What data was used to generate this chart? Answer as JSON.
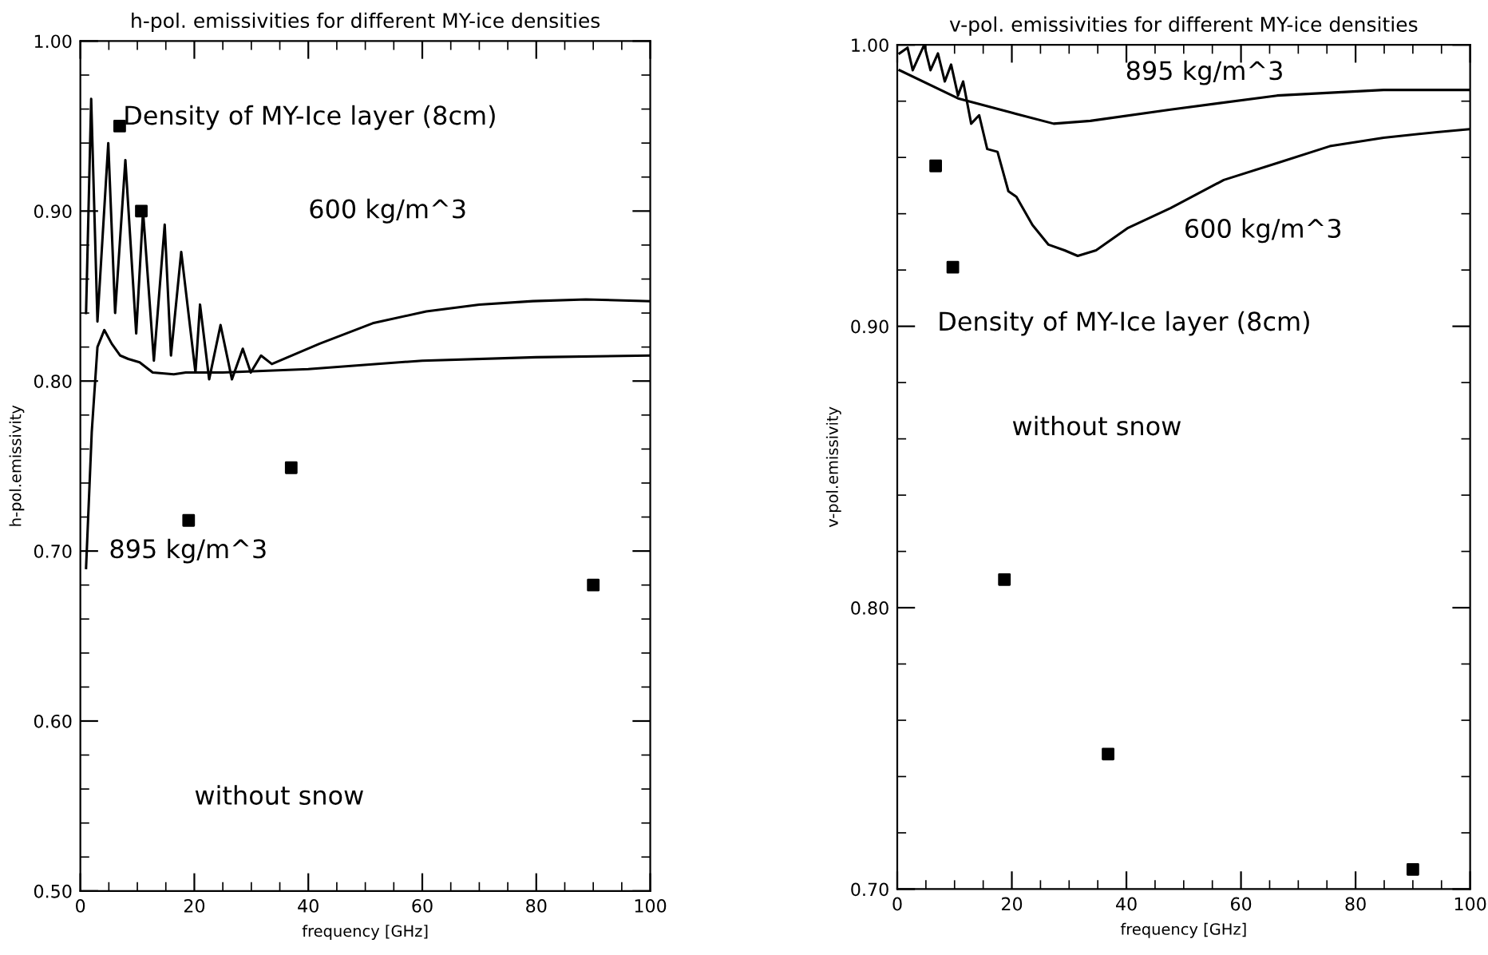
{
  "chart_data": [
    {
      "type": "line",
      "title": "h-pol. emissivities for different MY-ice densities",
      "xlabel": "frequency [GHz]",
      "ylabel": "h-pol.emissivity",
      "xlim": [
        0,
        100
      ],
      "xticks": [
        0,
        20,
        40,
        60,
        80,
        100
      ],
      "ylim": [
        0.5,
        1.0
      ],
      "yticks": [
        {
          "value": 0.5,
          "label": "0.50"
        },
        {
          "value": 0.6,
          "label": "0.60"
        },
        {
          "value": 0.7,
          "label": "0.70"
        },
        {
          "value": 0.8,
          "label": "0.80"
        },
        {
          "value": 0.9,
          "label": "0.90"
        },
        {
          "value": 1.0,
          "label": "1.00"
        }
      ],
      "grid": false,
      "legend": false,
      "series": [
        {
          "color": "#000000",
          "x": [
            1.0,
            1.9,
            3.0,
            4.9,
            6.1,
            7.9,
            9.8,
            11.0,
            12.9,
            14.8,
            15.9,
            17.7,
            20.2,
            21.0,
            22.6,
            24.6,
            26.6,
            28.5,
            29.9,
            31.7,
            33.6,
            42,
            51.3,
            60.7,
            70,
            79.4,
            88.7,
            100
          ],
          "values": [
            0.84,
            0.966,
            0.835,
            0.94,
            0.84,
            0.93,
            0.828,
            0.9,
            0.812,
            0.892,
            0.815,
            0.876,
            0.805,
            0.845,
            0.801,
            0.833,
            0.801,
            0.819,
            0.805,
            0.815,
            0.81,
            0.822,
            0.834,
            0.841,
            0.845,
            0.847,
            0.848,
            0.847
          ]
        },
        {
          "color": "#000000",
          "x": [
            1.0,
            2.0,
            3.0,
            4.2,
            5.5,
            7.0,
            8.4,
            10.4,
            12.7,
            16.4,
            18.5,
            25,
            40,
            60,
            80,
            100
          ],
          "values": [
            0.69,
            0.77,
            0.82,
            0.83,
            0.822,
            0.815,
            0.813,
            0.811,
            0.805,
            0.804,
            0.805,
            0.805,
            0.807,
            0.812,
            0.814,
            0.815
          ]
        },
        {
          "type": "scatter",
          "color": "#000000",
          "marker": "square",
          "x": [
            6.9,
            10.7,
            19,
            37,
            90
          ],
          "values": [
            0.95,
            0.9,
            0.718,
            0.749,
            0.68
          ]
        }
      ],
      "annotations": [
        "Density of MY-Ice layer (8cm)",
        "600 kg/m^3",
        "895 kg/m^3",
        "without snow"
      ]
    },
    {
      "type": "line",
      "title": "v-pol. emissivities for different MY-ice densities",
      "xlabel": "frequency [GHz]",
      "ylabel": "v-pol.emissivity",
      "xlim": [
        0,
        100
      ],
      "xticks": [
        0,
        20,
        40,
        60,
        80,
        100
      ],
      "ylim": [
        0.7,
        1.0
      ],
      "yticks": [
        {
          "value": 0.7,
          "label": "0.70"
        },
        {
          "value": 0.8,
          "label": "0.80"
        },
        {
          "value": 0.9,
          "label": "0.90"
        },
        {
          "value": 1.0,
          "label": "1.00"
        }
      ],
      "grid": false,
      "legend": false,
      "series": [
        {
          "color": "#000000",
          "x": [
            0.4,
            10.6,
            19.8,
            27.3,
            33.7,
            47.7,
            66.3,
            84.9,
            99.7
          ],
          "values": [
            0.991,
            0.981,
            0.976,
            0.972,
            0.973,
            0.977,
            0.982,
            0.984,
            0.984
          ]
        },
        {
          "color": "#000000",
          "x": [
            0.4,
            1.8,
            2.7,
            4.7,
            5.8,
            7.1,
            8.3,
            9.4,
            10.6,
            11.5,
            12.9,
            14.3,
            15.7,
            17.5,
            19.4,
            20.8,
            23.6,
            26.4,
            29.2,
            31.5,
            34.7,
            40.3,
            47.7,
            57.0,
            66.3,
            75.5,
            84.9,
            94.2,
            99.7
          ],
          "values": [
            0.997,
            0.999,
            0.991,
            1.0,
            0.991,
            0.997,
            0.987,
            0.993,
            0.982,
            0.987,
            0.972,
            0.975,
            0.963,
            0.962,
            0.948,
            0.946,
            0.936,
            0.929,
            0.927,
            0.925,
            0.927,
            0.935,
            0.942,
            0.952,
            0.958,
            0.964,
            0.967,
            0.969,
            0.97
          ]
        },
        {
          "type": "scatter",
          "color": "#000000",
          "marker": "square",
          "x": [
            6.7,
            9.7,
            18.7,
            36.8,
            90
          ],
          "values": [
            0.957,
            0.921,
            0.81,
            0.748,
            0.707
          ]
        }
      ],
      "annotations": [
        "895 kg/m^3",
        "600 kg/m^3",
        "Density of MY-Ice layer (8cm)",
        "without snow"
      ]
    }
  ]
}
